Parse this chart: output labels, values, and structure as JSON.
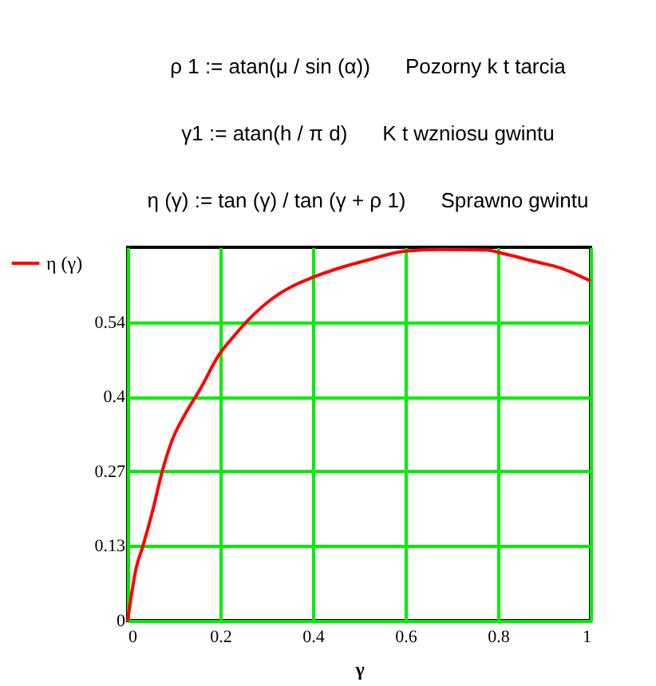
{
  "chart_data": {
    "type": "line",
    "annotations": [
      "ρ 1 := atan(μ / sin (α))",
      "Pozorny k t tarcia",
      "γ1 := atan(h / π d)",
      "K t wzniosu gwintu",
      "η (γ) := tan (γ) / tan (γ + ρ 1)",
      "Sprawno gwintu"
    ],
    "xlabel": "γ",
    "x": [
      0,
      0.018,
      0.033,
      0.054,
      0.074,
      0.095,
      0.126,
      0.157,
      0.196,
      0.23,
      0.261,
      0.312,
      0.364,
      0.398,
      0.467,
      0.519,
      0.6,
      0.674,
      0.778,
      0.8,
      0.881,
      0.933,
      1
    ],
    "series": [
      {
        "name": "η (γ)",
        "color": "#ff0000",
        "values": [
          0,
          0.094,
          0.135,
          0.199,
          0.268,
          0.324,
          0.376,
          0.419,
          0.479,
          0.515,
          0.544,
          0.582,
          0.608,
          0.62,
          0.64,
          0.652,
          0.668,
          0.671,
          0.67,
          0.666,
          0.649,
          0.638,
          0.614
        ]
      }
    ],
    "xlim": [
      0,
      1
    ],
    "xticks": [
      0,
      0.2,
      0.4,
      0.6,
      0.8,
      1
    ],
    "ylim": [
      0,
      0.675
    ],
    "yticks": [
      0,
      {
        "value": 0.135,
        "label": "0.13"
      },
      0.27,
      {
        "value": 0.405,
        "label": "0.4"
      },
      0.54
    ],
    "grid": true,
    "legend": "left",
    "line_style": "solid",
    "marker": "none"
  }
}
